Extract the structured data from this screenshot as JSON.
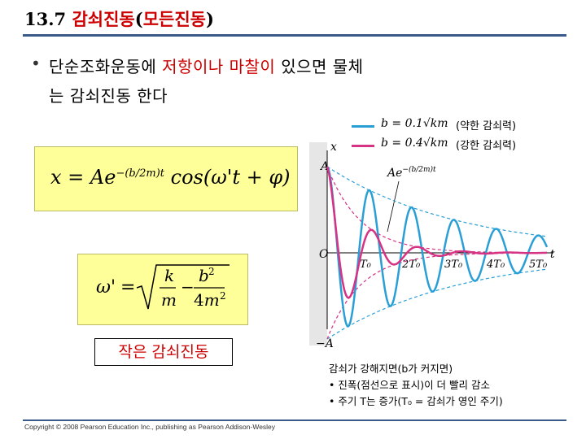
{
  "header": {
    "number": "13.7",
    "title_kr": "감쇠진동",
    "paren_open": "(",
    "title_kr2": "모든진동",
    "paren_close": ")"
  },
  "bullet": {
    "symbol": "•",
    "part1": "단순조화운동에 ",
    "red": "저항이나 마찰이",
    "part2": " 있으면 물체",
    "line2": "는 감쇠진동 한다"
  },
  "equation1": {
    "lhs": "x = Ae",
    "exponent": "−(b/2m)t",
    "rhs": " cos(ω't + φ)"
  },
  "equation2": {
    "text": "ω' = √( k/m − b²/4m² )"
  },
  "label_box": "작은 감쇠진동",
  "legend": {
    "items": [
      {
        "eq": "b = 0.1√km",
        "label": "(약한 감쇠력)",
        "color": "#2a9fd6"
      },
      {
        "eq": "b = 0.4√km",
        "label": "(강한 감쇠력)",
        "color": "#d63384"
      }
    ]
  },
  "graph": {
    "y_axis_label": "x",
    "x_axis_label": "t",
    "A_top": "A",
    "A_bottom": "−A",
    "origin": "O",
    "envelope_label": "Ae",
    "envelope_exp": "−(b/2m)t",
    "ticks": [
      "T₀",
      "2T₀",
      "3T₀",
      "4T₀",
      "5T₀"
    ],
    "weak_color": "#2a9fd6",
    "strong_color": "#d63384"
  },
  "notes": {
    "line1": "감쇠가 강해지면(b가 커지면)",
    "line2": "• 진폭(점선으로 표시)이 더 빨리 감소",
    "line3": "• 주기 T는 증가(T₀ = 감쇠가 영인 주기)"
  },
  "footer": {
    "copyright": "Copyright © 2008 Pearson Education Inc., publishing as Pearson Addison-Wesley"
  }
}
